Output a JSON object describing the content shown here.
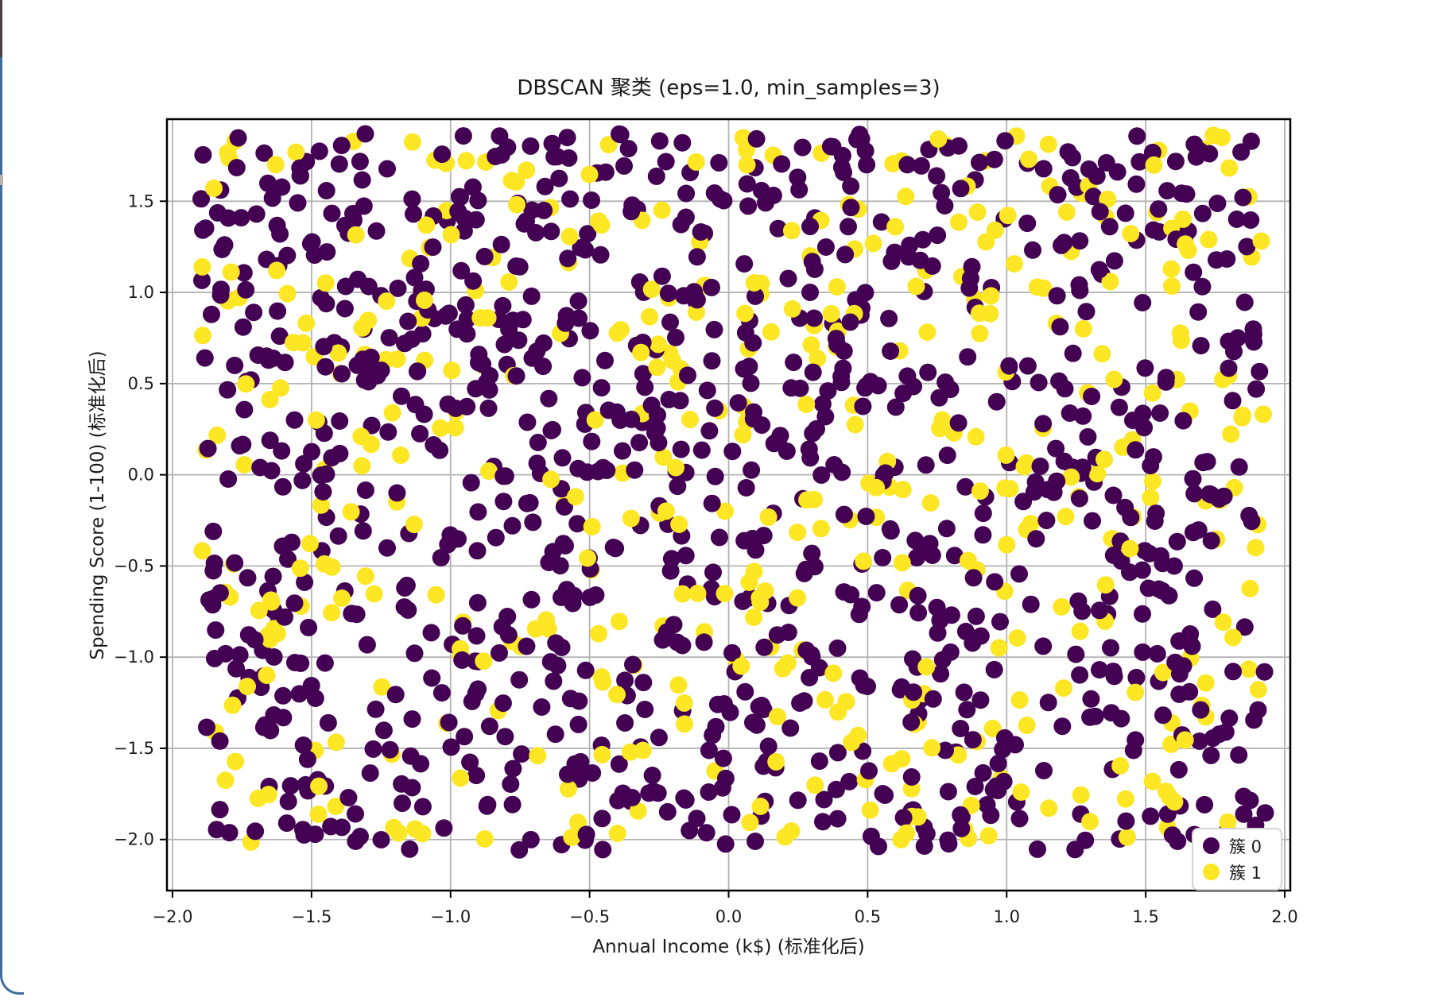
{
  "window": {
    "background": "#ffffff",
    "edge_top_color": "#4a4543",
    "edge_accent_color": "#3d6e9e",
    "edge_thumb_color": "#b8b4b2"
  },
  "chart_data": {
    "type": "scatter",
    "title": "DBSCAN 聚类 (eps=1.0, min_samples=3)",
    "xlabel": "Annual Income (k$) (标准化后)",
    "ylabel": "Spending Score (1-100) (标准化后)",
    "xlim": [
      -2.02,
      2.02
    ],
    "ylim": [
      -2.28,
      1.95
    ],
    "xticks": {
      "values": [
        -2.0,
        -1.5,
        -1.0,
        -0.5,
        0.0,
        0.5,
        1.0,
        1.5,
        2.0
      ],
      "labels": [
        "−2.0",
        "−1.5",
        "−1.0",
        "−0.5",
        "0.0",
        "0.5",
        "1.0",
        "1.5",
        "2.0"
      ]
    },
    "yticks": {
      "values": [
        1.5,
        1.0,
        0.5,
        0.0,
        -0.5,
        -1.0,
        -1.5,
        -2.0
      ],
      "labels": [
        "1.5",
        "1.0",
        "0.5",
        "0.0",
        "−0.5",
        "−1.0",
        "−1.5",
        "−2.0"
      ]
    },
    "grid": true,
    "grid_color": "#b3b3b3",
    "axis_color": "#000000",
    "text_color": "#1a1a1a",
    "marker_radius_px": 11,
    "points": {
      "total": 1500,
      "seed": 12345,
      "distribution": "uniform",
      "x_range": [
        -1.9,
        1.93
      ],
      "y_range": [
        -2.06,
        1.87
      ]
    },
    "series": [
      {
        "name": "簇 0",
        "color": "#440154",
        "share": 0.7
      },
      {
        "name": "簇 1",
        "color": "#fde725",
        "share": 0.3
      }
    ],
    "legend": {
      "position": "lower right"
    }
  }
}
